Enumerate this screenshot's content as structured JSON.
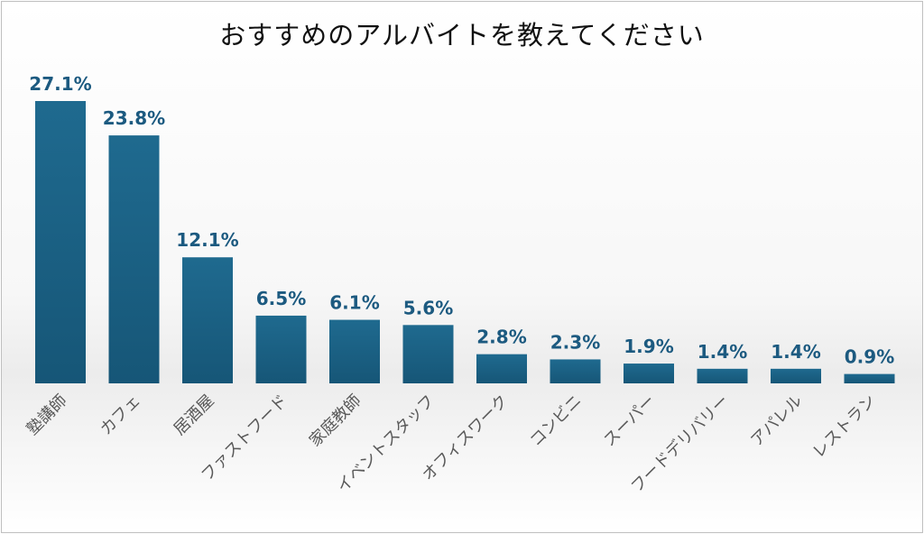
{
  "chart_data": {
    "type": "bar",
    "title": "おすすめのアルバイトを教えてください",
    "categories": [
      "塾講師",
      "カフェ",
      "居酒屋",
      "ファストフード",
      "家庭教師",
      "イベントスタッフ",
      "オフィスワーク",
      "コンビニ",
      "スーパー",
      "フードデリバリー",
      "アパレル",
      "レストラン"
    ],
    "values": [
      27.1,
      23.8,
      12.1,
      6.5,
      6.1,
      5.6,
      2.8,
      2.3,
      1.9,
      1.4,
      1.4,
      0.9
    ],
    "data_labels": [
      "27.1%",
      "23.8%",
      "12.1%",
      "6.5%",
      "6.1%",
      "5.6%",
      "2.8%",
      "2.3%",
      "1.9%",
      "1.4%",
      "1.4%",
      "0.9%"
    ],
    "ylim": [
      0,
      27.1
    ],
    "grid": false,
    "legend": false,
    "bar_color": "#1a6386",
    "label_color": "#1c5a80"
  }
}
